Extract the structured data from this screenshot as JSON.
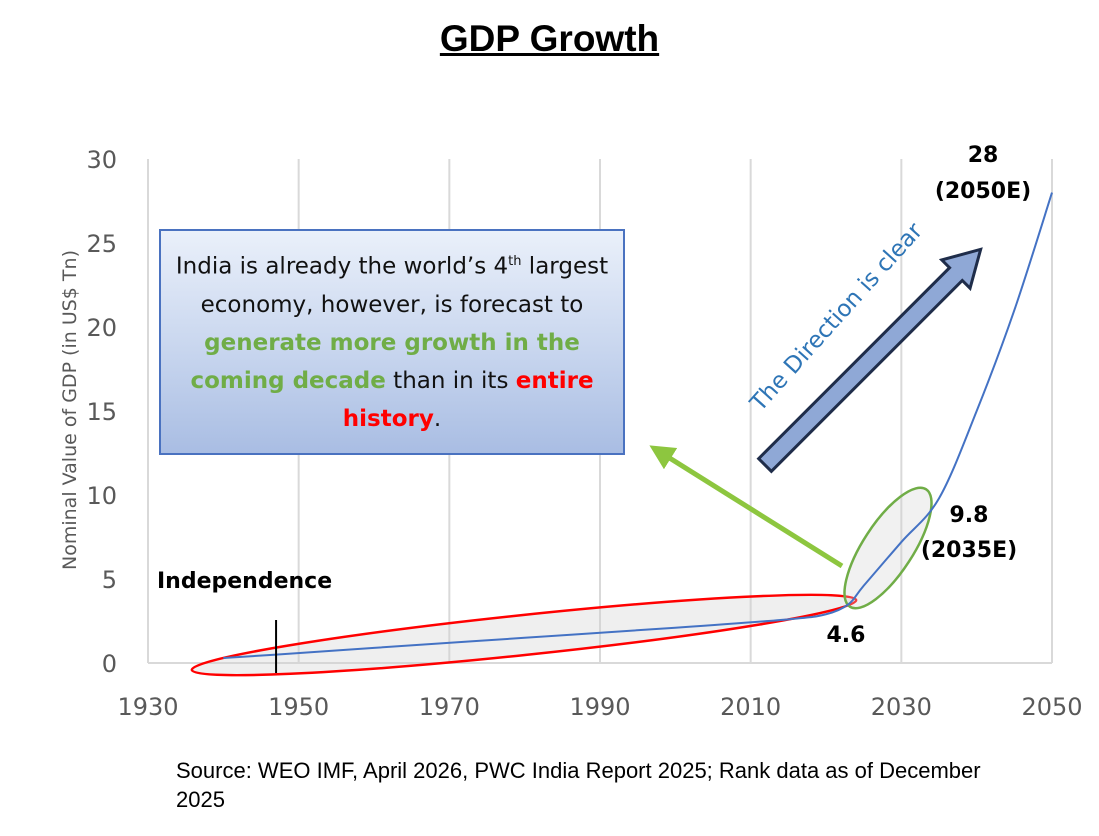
{
  "title": "GDP Growth",
  "callout": {
    "part1": "India is already the world’s 4",
    "sup": "th",
    "part2": " largest economy, however, is forecast to ",
    "green": "generate more growth in the coming decade",
    "part3": " than in its ",
    "red": "entire history",
    "part4": "."
  },
  "annotations": {
    "independence": "Independence",
    "direction": "The Direction is clear",
    "value_2025": "4.6",
    "value_2035": "9.8",
    "value_2035_year": "(2035E)",
    "value_2050": "28",
    "value_2050_year": "(2050E)"
  },
  "source": "Source: WEO IMF, April 2026, PWC India Report 2025; Rank data as of December 2025",
  "colors": {
    "line": "#4472c4",
    "direction_arrow": "#8fa8d6",
    "direction_text": "#2e75b6",
    "red_ellipse": "#ff0000",
    "green_ellipse": "#70ad47",
    "grid": "#d9d9d9"
  },
  "chart_data": {
    "type": "line",
    "title": "GDP Growth",
    "xlabel": "",
    "ylabel": "Nominal Value of GDP (in US$ Tn)",
    "xlim": [
      1930,
      2050
    ],
    "ylim": [
      0,
      30
    ],
    "xticks": [
      1930,
      1950,
      1970,
      1990,
      2010,
      2030,
      2050
    ],
    "yticks": [
      0,
      5,
      10,
      15,
      20,
      25,
      30
    ],
    "grid": "vertical",
    "series": [
      {
        "x": [
          1940,
          1947,
          1960,
          1980,
          2000,
          2015,
          2020,
          2023,
          2025,
          2030,
          2035,
          2040,
          2045,
          2050
        ],
        "values": [
          0.3,
          0.5,
          0.9,
          1.5,
          2.1,
          2.6,
          2.9,
          3.5,
          4.6,
          7.2,
          9.8,
          15,
          21,
          28
        ]
      }
    ],
    "independence_year": 1947
  }
}
